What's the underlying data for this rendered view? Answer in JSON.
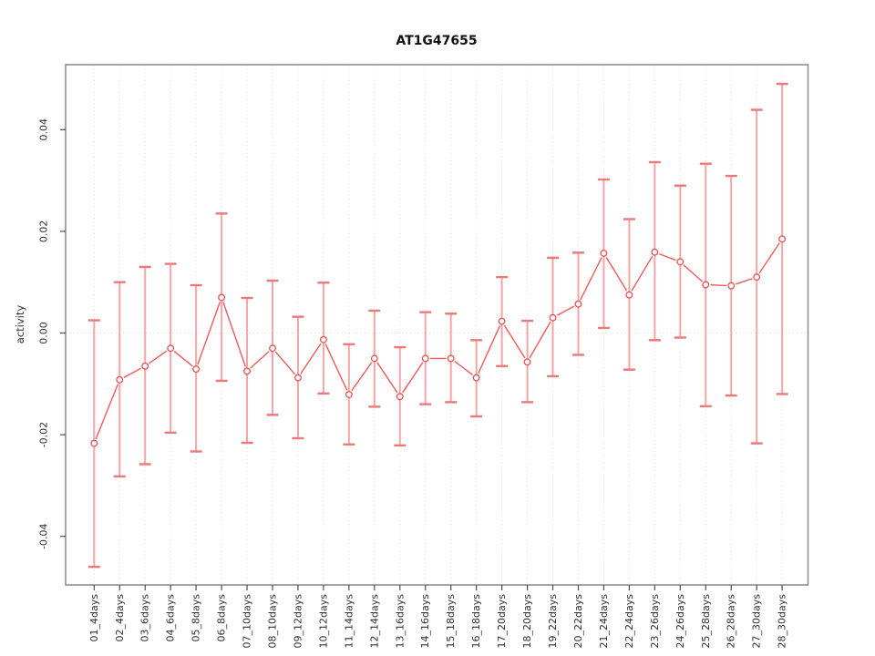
{
  "figure": {
    "title": "AT1G47655",
    "ylabel": "activity",
    "xlabel": ""
  },
  "chart_data": {
    "type": "line",
    "subtype": "means-with-error-bars",
    "title": "AT1G47655",
    "xlabel": "",
    "ylabel": "activity",
    "legend": "none",
    "grid": {
      "vertical": "dotted",
      "horizontal_zero_line": "dotted"
    },
    "ylim": [
      -0.0495,
      0.0527
    ],
    "yticks": {
      "values": [
        0.04,
        0.02,
        0.0,
        -0.02,
        -0.04
      ],
      "labels": [
        "0.04",
        "0.02",
        "0.00",
        "-0.02",
        "-0.04"
      ]
    },
    "categories": [
      "01_4days",
      "02_4days",
      "03_6days",
      "04_6days",
      "05_8days",
      "06_8days",
      "07_10days",
      "08_10days",
      "09_12days",
      "10_12days",
      "11_14days",
      "12_14days",
      "13_16days",
      "14_16days",
      "15_18days",
      "16_18days",
      "17_20days",
      "18_20days",
      "19_22days",
      "20_22days",
      "21_24days",
      "22_24days",
      "23_26days",
      "24_26days",
      "25_28days",
      "26_28days",
      "27_30days",
      "28_30days"
    ],
    "series": [
      {
        "name": "mean activity",
        "role": "center",
        "values": [
          -0.0217,
          -0.0092,
          -0.0065,
          -0.003,
          -0.0071,
          0.007,
          -0.0075,
          -0.003,
          -0.0088,
          -0.0013,
          -0.0121,
          -0.005,
          -0.0125,
          -0.005,
          -0.005,
          -0.0088,
          0.0023,
          -0.0057,
          0.003,
          0.0057,
          0.0157,
          0.0075,
          0.0159,
          0.014,
          0.0095,
          0.0093,
          0.011,
          0.0185
        ]
      },
      {
        "name": "upper error bound",
        "role": "upper",
        "values": [
          0.0025,
          0.01,
          0.013,
          0.0136,
          0.0094,
          0.0235,
          0.0069,
          0.0103,
          0.0032,
          0.0099,
          -0.0022,
          0.0044,
          -0.0028,
          0.0041,
          0.0038,
          -0.0014,
          0.011,
          0.0024,
          0.0148,
          0.0158,
          0.0302,
          0.0224,
          0.0336,
          0.029,
          0.0333,
          0.0309,
          0.0439,
          0.049
        ]
      },
      {
        "name": "lower error bound",
        "role": "lower",
        "values": [
          -0.046,
          -0.0282,
          -0.0258,
          -0.0196,
          -0.0233,
          -0.0094,
          -0.0216,
          -0.0161,
          -0.0207,
          -0.0119,
          -0.0219,
          -0.0145,
          -0.0221,
          -0.014,
          -0.0136,
          -0.0164,
          -0.0065,
          -0.0136,
          -0.0085,
          -0.0043,
          0.001,
          -0.0072,
          -0.0014,
          -0.0009,
          -0.0144,
          -0.0123,
          -0.0217,
          -0.012
        ]
      }
    ],
    "colors": {
      "series_line": "#ef5a5a",
      "marker_stroke": "#ea4f4f",
      "marker_fill": "#ffffff",
      "error_stem": "#f4a6a6",
      "error_cap": "#ec7878",
      "gridline": "#e3e3e3",
      "zero_line": "#e4d8d8",
      "axis_box": "#8f8f8f",
      "tick_mark": "#4d4d4d",
      "text": "#303030"
    }
  }
}
